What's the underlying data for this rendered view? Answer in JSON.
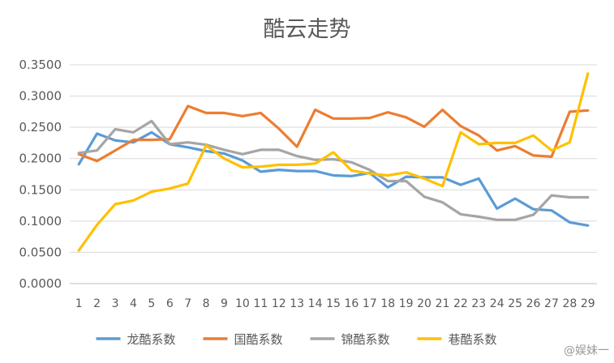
{
  "chart_data": {
    "type": "line",
    "title": "酷云走势",
    "xlabel": "",
    "ylabel": "",
    "x": [
      1,
      2,
      3,
      4,
      5,
      6,
      7,
      8,
      9,
      10,
      11,
      12,
      13,
      14,
      15,
      16,
      17,
      18,
      19,
      20,
      21,
      22,
      23,
      24,
      25,
      26,
      27,
      28,
      29
    ],
    "ylim": [
      0,
      0.35
    ],
    "yticks": [
      "0.0000",
      "0.0500",
      "0.1000",
      "0.1500",
      "0.2000",
      "0.2500",
      "0.3000",
      "0.3500"
    ],
    "grid": true,
    "legend_position": "bottom",
    "series": [
      {
        "name": "龙酷系数",
        "color": "#5B9BD5",
        "values": [
          0.191,
          0.24,
          0.229,
          0.226,
          0.242,
          0.223,
          0.218,
          0.212,
          0.208,
          0.197,
          0.179,
          0.182,
          0.18,
          0.18,
          0.173,
          0.172,
          0.177,
          0.154,
          0.171,
          0.17,
          0.17,
          0.158,
          0.168,
          0.12,
          0.136,
          0.119,
          0.117,
          0.098,
          0.093
        ]
      },
      {
        "name": "国酷系数",
        "color": "#ED7D31",
        "values": [
          0.207,
          0.196,
          0.213,
          0.23,
          0.23,
          0.231,
          0.284,
          0.273,
          0.273,
          0.268,
          0.273,
          0.248,
          0.219,
          0.278,
          0.264,
          0.264,
          0.265,
          0.274,
          0.266,
          0.251,
          0.278,
          0.252,
          0.237,
          0.213,
          0.22,
          0.205,
          0.203,
          0.275,
          0.277
        ]
      },
      {
        "name": "锦酷系数",
        "color": "#A5A5A5",
        "values": [
          0.209,
          0.213,
          0.247,
          0.242,
          0.26,
          0.223,
          0.226,
          0.222,
          0.214,
          0.207,
          0.214,
          0.214,
          0.204,
          0.198,
          0.199,
          0.194,
          0.182,
          0.164,
          0.164,
          0.139,
          0.13,
          0.111,
          0.107,
          0.102,
          0.102,
          0.11,
          0.141,
          0.138,
          0.138
        ]
      },
      {
        "name": "巷酷系数",
        "color": "#FFC000",
        "values": [
          0.053,
          0.094,
          0.127,
          0.133,
          0.147,
          0.152,
          0.16,
          0.221,
          0.2,
          0.186,
          0.187,
          0.19,
          0.19,
          0.192,
          0.21,
          0.181,
          0.176,
          0.173,
          0.178,
          0.168,
          0.156,
          0.242,
          0.223,
          0.225,
          0.225,
          0.237,
          0.213,
          0.226,
          0.336
        ]
      }
    ]
  },
  "watermark": "@娱妹一"
}
